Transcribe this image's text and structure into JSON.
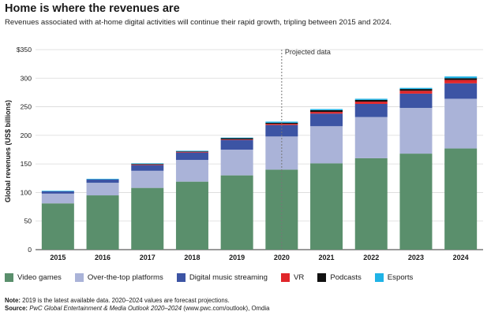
{
  "title": "Home is where the revenues are",
  "subtitle": "Revenues associated with at-home digital activities will continue their rapid growth, tripling between 2015 and 2024.",
  "note": {
    "label": "Note:",
    "text": " 2019 is the latest available data. 2020–2024 values are forecast projections."
  },
  "source": {
    "label": "Source:",
    "italic": " PwC Global Entertainment & Media Outlook 2020–2024",
    "text": " (www.pwc.com/outlook), Omdia"
  },
  "chart_data": {
    "type": "bar",
    "stacked": true,
    "categories": [
      "2015",
      "2016",
      "2017",
      "2018",
      "2019",
      "2020",
      "2021",
      "2022",
      "2023",
      "2024"
    ],
    "ylabel": "Global revenues (US$ billions)",
    "ylim": [
      0,
      350
    ],
    "yticks": [
      0,
      50,
      100,
      150,
      200,
      250,
      300,
      350
    ],
    "ytick_labels": [
      "0",
      "50",
      "100",
      "150",
      "200",
      "250",
      "300",
      "$350"
    ],
    "annotation": {
      "text": "Projected data",
      "at_category": "2020"
    },
    "series": [
      {
        "name": "Video games",
        "color": "#5a8f6c",
        "values": [
          81,
          95,
          108,
          119,
          130,
          140,
          151,
          160,
          168,
          177
        ]
      },
      {
        "name": "Over-the-top platforms",
        "color": "#aab3d8",
        "values": [
          17,
          22,
          30,
          38,
          45,
          58,
          65,
          72,
          80,
          87
        ]
      },
      {
        "name": "Digital music streaming",
        "color": "#3c54a4",
        "values": [
          4,
          6,
          10,
          13,
          17,
          20,
          22,
          23,
          25,
          27
        ]
      },
      {
        "name": "VR",
        "color": "#e0262a",
        "values": [
          0,
          0,
          1,
          1,
          1,
          2,
          3,
          4,
          5,
          6
        ]
      },
      {
        "name": "Podcasts",
        "color": "#111111",
        "values": [
          0,
          0,
          1,
          1,
          2,
          2,
          3,
          3,
          3,
          3
        ]
      },
      {
        "name": "Esports",
        "color": "#1fb3e6",
        "values": [
          1,
          1,
          1,
          1,
          1,
          2,
          2,
          2,
          2,
          3
        ]
      }
    ]
  }
}
